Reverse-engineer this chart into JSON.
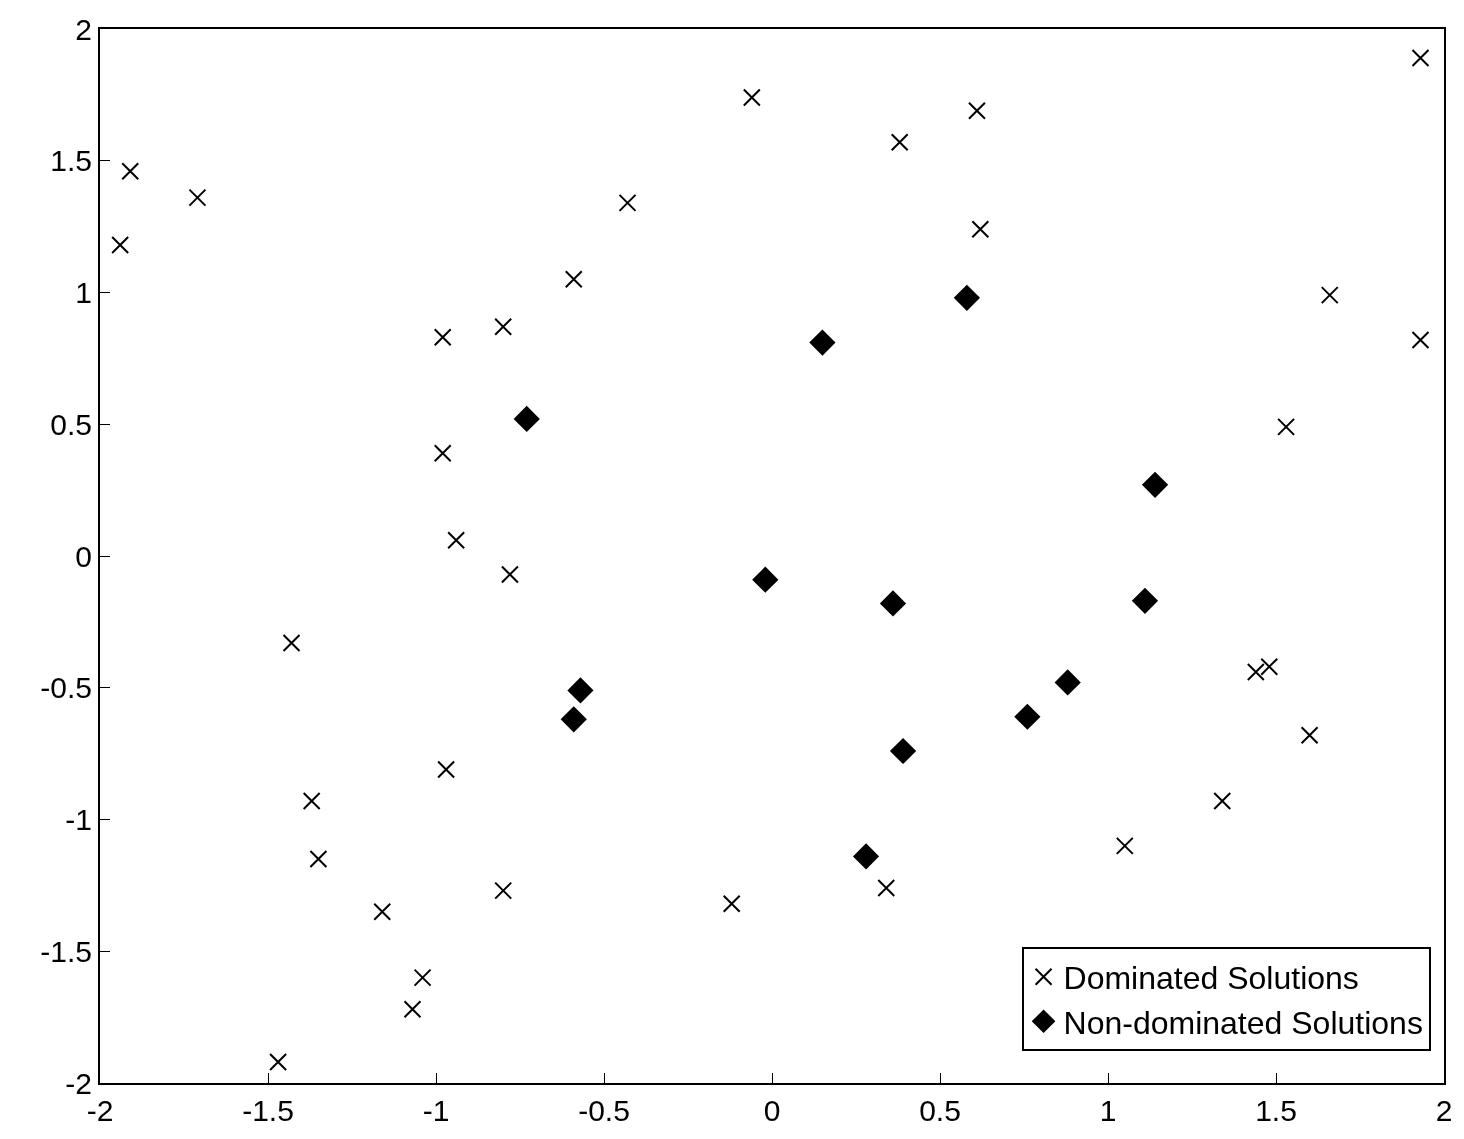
{
  "chart_data": {
    "type": "scatter",
    "xlim": [
      -2,
      2
    ],
    "ylim": [
      -2,
      2
    ],
    "xticks": [
      -2,
      -1.5,
      -1,
      -0.5,
      0,
      0.5,
      1,
      1.5,
      2
    ],
    "yticks": [
      -2,
      -1.5,
      -1,
      -0.5,
      0,
      0.5,
      1,
      1.5,
      2
    ],
    "legend": "bottom right",
    "series": [
      {
        "name": "Dominated Solutions",
        "color": "#000000",
        "marker": "cross",
        "x": [
          1.93,
          -1.91,
          -1.71,
          -1.94,
          -0.06,
          0.38,
          0.61,
          -0.43,
          0.62,
          -0.59,
          1.66,
          1.93,
          -0.98,
          -0.8,
          -0.98,
          1.53,
          -0.94,
          -0.78,
          -1.43,
          1.48,
          1.44,
          1.6,
          -0.97,
          -1.37,
          -1.35,
          1.34,
          1.05,
          -0.8,
          -0.12,
          0.34,
          -1.16,
          -1.04,
          -1.07,
          -1.47
        ],
        "values": [
          1.89,
          1.46,
          1.36,
          1.18,
          1.74,
          1.57,
          1.69,
          1.34,
          1.24,
          1.05,
          0.99,
          0.82,
          0.83,
          0.87,
          0.39,
          0.49,
          0.06,
          -0.07,
          -0.33,
          -0.42,
          -0.44,
          -0.68,
          -0.81,
          -0.93,
          -1.15,
          -0.93,
          -1.1,
          -1.27,
          -1.32,
          -1.26,
          -1.35,
          -1.6,
          -1.72,
          -1.92
        ]
      },
      {
        "name": "Non-dominated Solutions",
        "color": "#000000",
        "marker": "diamond",
        "x": [
          0.15,
          0.58,
          -0.73,
          1.14,
          -0.02,
          0.36,
          1.11,
          0.88,
          -0.57,
          -0.59,
          0.76,
          0.39,
          0.28
        ],
        "values": [
          0.81,
          0.98,
          0.52,
          0.27,
          -0.09,
          -0.18,
          -0.17,
          -0.48,
          -0.51,
          -0.62,
          -0.61,
          -0.74,
          -1.14
        ]
      }
    ]
  }
}
